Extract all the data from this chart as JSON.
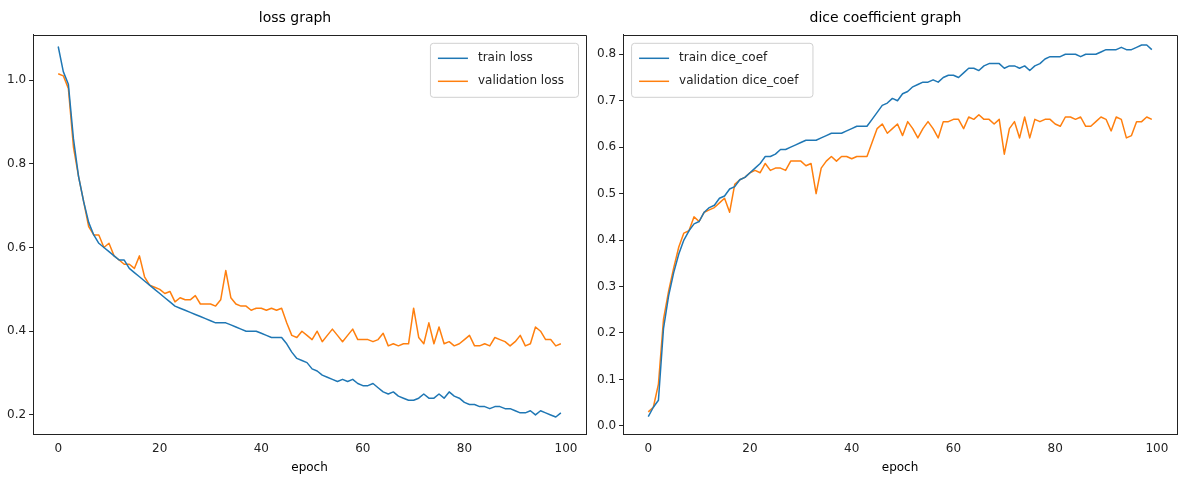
{
  "chart_data": [
    {
      "type": "line",
      "title": "loss graph",
      "xlabel": "epoch",
      "legend": "top right",
      "x": [
        0,
        1,
        2,
        3,
        4,
        5,
        6,
        7,
        8,
        9,
        10,
        11,
        12,
        13,
        14,
        15,
        16,
        17,
        18,
        19,
        20,
        21,
        22,
        23,
        24,
        25,
        26,
        27,
        28,
        29,
        30,
        31,
        32,
        33,
        34,
        35,
        36,
        37,
        38,
        39,
        40,
        41,
        42,
        43,
        44,
        45,
        46,
        47,
        48,
        49,
        50,
        51,
        52,
        53,
        54,
        55,
        56,
        57,
        58,
        59,
        60,
        61,
        62,
        63,
        64,
        65,
        66,
        67,
        68,
        69,
        70,
        71,
        72,
        73,
        74,
        75,
        76,
        77,
        78,
        79,
        80,
        81,
        82,
        83,
        84,
        85,
        86,
        87,
        88,
        89,
        90,
        91,
        92,
        93,
        94,
        95,
        96,
        97,
        98,
        99
      ],
      "xlim": [
        -4.95,
        103.95
      ],
      "xticks": [
        0,
        20,
        40,
        60,
        80,
        100
      ],
      "ylim": [
        0.154,
        1.108
      ],
      "yticks": [
        0.2,
        0.4,
        0.6,
        0.8,
        {
          "value": 1,
          "label": "1.0"
        }
      ],
      "series": [
        {
          "name": "train loss",
          "color": "#1f77b4",
          "values": [
            1.08,
            1.02,
            0.99,
            0.86,
            0.77,
            0.71,
            0.66,
            0.63,
            0.61,
            0.6,
            0.59,
            0.58,
            0.57,
            0.57,
            0.55,
            0.54,
            0.53,
            0.52,
            0.51,
            0.5,
            0.49,
            0.48,
            0.47,
            0.46,
            0.455,
            0.45,
            0.445,
            0.44,
            0.435,
            0.43,
            0.425,
            0.42,
            0.42,
            0.42,
            0.415,
            0.41,
            0.405,
            0.4,
            0.4,
            0.4,
            0.395,
            0.39,
            0.385,
            0.385,
            0.385,
            0.37,
            0.35,
            0.335,
            0.33,
            0.325,
            0.31,
            0.305,
            0.295,
            0.29,
            0.285,
            0.28,
            0.285,
            0.28,
            0.285,
            0.275,
            0.27,
            0.27,
            0.275,
            0.265,
            0.255,
            0.25,
            0.255,
            0.245,
            0.24,
            0.235,
            0.235,
            0.24,
            0.25,
            0.24,
            0.24,
            0.25,
            0.24,
            0.255,
            0.245,
            0.24,
            0.23,
            0.225,
            0.225,
            0.22,
            0.22,
            0.215,
            0.22,
            0.22,
            0.215,
            0.215,
            0.21,
            0.205,
            0.205,
            0.21,
            0.2,
            0.21,
            0.205,
            0.2,
            0.195,
            0.205
          ]
        },
        {
          "name": "validation loss",
          "color": "#ff7f0e",
          "values": [
            1.015,
            1.01,
            0.98,
            0.84,
            0.77,
            0.71,
            0.65,
            0.63,
            0.63,
            0.6,
            0.61,
            0.58,
            0.57,
            0.56,
            0.56,
            0.55,
            0.58,
            0.53,
            0.51,
            0.505,
            0.5,
            0.49,
            0.495,
            0.47,
            0.48,
            0.475,
            0.475,
            0.485,
            0.465,
            0.465,
            0.465,
            0.46,
            0.475,
            0.545,
            0.48,
            0.465,
            0.46,
            0.46,
            0.45,
            0.455,
            0.455,
            0.45,
            0.455,
            0.45,
            0.455,
            0.42,
            0.39,
            0.385,
            0.4,
            0.39,
            0.38,
            0.4,
            0.375,
            0.39,
            0.405,
            0.39,
            0.375,
            0.39,
            0.405,
            0.38,
            0.38,
            0.38,
            0.375,
            0.38,
            0.395,
            0.365,
            0.37,
            0.365,
            0.37,
            0.37,
            0.455,
            0.385,
            0.37,
            0.42,
            0.37,
            0.41,
            0.37,
            0.375,
            0.365,
            0.37,
            0.38,
            0.39,
            0.365,
            0.365,
            0.37,
            0.365,
            0.385,
            0.38,
            0.375,
            0.365,
            0.375,
            0.39,
            0.365,
            0.37,
            0.41,
            0.4,
            0.38,
            0.38,
            0.365,
            0.37
          ]
        }
      ]
    },
    {
      "type": "line",
      "title": "dice coefficient graph",
      "xlabel": "epoch",
      "legend": "top left",
      "x": [
        0,
        1,
        2,
        3,
        4,
        5,
        6,
        7,
        8,
        9,
        10,
        11,
        12,
        13,
        14,
        15,
        16,
        17,
        18,
        19,
        20,
        21,
        22,
        23,
        24,
        25,
        26,
        27,
        28,
        29,
        30,
        31,
        32,
        33,
        34,
        35,
        36,
        37,
        38,
        39,
        40,
        41,
        42,
        43,
        44,
        45,
        46,
        47,
        48,
        49,
        50,
        51,
        52,
        53,
        54,
        55,
        56,
        57,
        58,
        59,
        60,
        61,
        62,
        63,
        64,
        65,
        66,
        67,
        68,
        69,
        70,
        71,
        72,
        73,
        74,
        75,
        76,
        77,
        78,
        79,
        80,
        81,
        82,
        83,
        84,
        85,
        86,
        87,
        88,
        89,
        90,
        91,
        92,
        93,
        94,
        95,
        96,
        97,
        98,
        99
      ],
      "xlim": [
        -4.95,
        103.95
      ],
      "xticks": [
        0,
        20,
        40,
        60,
        80,
        100
      ],
      "ylim": [
        -0.018,
        0.842
      ],
      "yticks": [
        {
          "value": 0,
          "label": "0.0"
        },
        0.1,
        0.2,
        0.3,
        0.4,
        0.5,
        0.6,
        0.7,
        0.8
      ],
      "series": [
        {
          "name": "train dice_coef",
          "color": "#1f77b4",
          "values": [
            0.02,
            0.04,
            0.055,
            0.21,
            0.28,
            0.33,
            0.37,
            0.4,
            0.42,
            0.435,
            0.44,
            0.46,
            0.47,
            0.475,
            0.49,
            0.495,
            0.51,
            0.515,
            0.53,
            0.535,
            0.545,
            0.555,
            0.565,
            0.58,
            0.58,
            0.585,
            0.595,
            0.595,
            0.6,
            0.605,
            0.61,
            0.615,
            0.615,
            0.615,
            0.62,
            0.625,
            0.63,
            0.63,
            0.63,
            0.635,
            0.64,
            0.645,
            0.645,
            0.645,
            0.66,
            0.675,
            0.69,
            0.695,
            0.705,
            0.7,
            0.715,
            0.72,
            0.73,
            0.735,
            0.74,
            0.74,
            0.745,
            0.74,
            0.75,
            0.755,
            0.755,
            0.75,
            0.76,
            0.77,
            0.77,
            0.765,
            0.775,
            0.78,
            0.78,
            0.78,
            0.77,
            0.775,
            0.775,
            0.77,
            0.775,
            0.765,
            0.775,
            0.78,
            0.79,
            0.795,
            0.795,
            0.795,
            0.8,
            0.8,
            0.8,
            0.795,
            0.8,
            0.8,
            0.8,
            0.805,
            0.81,
            0.81,
            0.81,
            0.815,
            0.81,
            0.81,
            0.815,
            0.82,
            0.82,
            0.81
          ]
        },
        {
          "name": "validation dice_coef",
          "color": "#ff7f0e",
          "values": [
            0.03,
            0.04,
            0.09,
            0.23,
            0.29,
            0.34,
            0.385,
            0.415,
            0.42,
            0.45,
            0.44,
            0.46,
            0.465,
            0.47,
            0.48,
            0.49,
            0.46,
            0.52,
            0.53,
            0.535,
            0.545,
            0.55,
            0.545,
            0.565,
            0.55,
            0.555,
            0.555,
            0.55,
            0.57,
            0.57,
            0.57,
            0.56,
            0.565,
            0.5,
            0.555,
            0.57,
            0.58,
            0.57,
            0.58,
            0.58,
            0.575,
            0.58,
            0.58,
            0.58,
            0.61,
            0.64,
            0.65,
            0.63,
            0.64,
            0.65,
            0.625,
            0.655,
            0.64,
            0.62,
            0.64,
            0.655,
            0.64,
            0.62,
            0.655,
            0.655,
            0.66,
            0.66,
            0.64,
            0.665,
            0.66,
            0.67,
            0.66,
            0.66,
            0.65,
            0.66,
            0.585,
            0.64,
            0.655,
            0.62,
            0.665,
            0.62,
            0.66,
            0.655,
            0.66,
            0.66,
            0.65,
            0.645,
            0.665,
            0.665,
            0.66,
            0.665,
            0.645,
            0.645,
            0.655,
            0.665,
            0.66,
            0.635,
            0.665,
            0.66,
            0.62,
            0.625,
            0.655,
            0.655,
            0.665,
            0.66
          ]
        }
      ]
    }
  ]
}
